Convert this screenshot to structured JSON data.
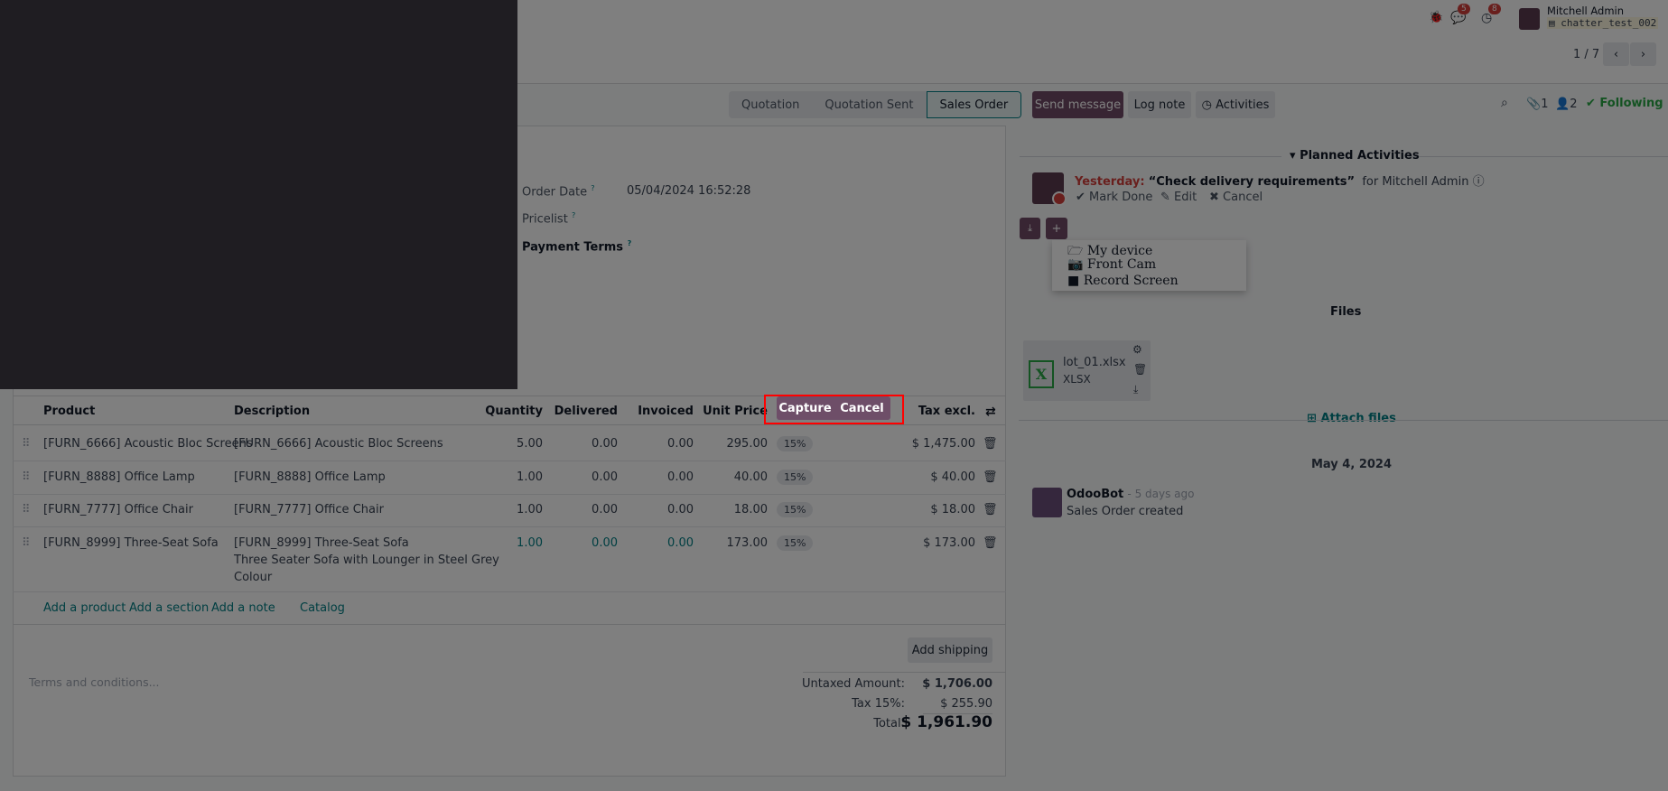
{
  "topbar": {
    "user_name": "Mitchell Admin",
    "database": "chatter_test_002",
    "messages_badge": "5",
    "activities_badge": "8"
  },
  "pager": {
    "value": "1 / 7"
  },
  "statusbar": {
    "stages": [
      "Quotation",
      "Quotation Sent",
      "Sales Order"
    ],
    "active": "Sales Order"
  },
  "form": {
    "order_date_label": "Order Date",
    "order_date_value": "05/04/2024 16:52:28",
    "pricelist_label": "Pricelist",
    "payment_terms_label": "Payment Terms",
    "help_mark": "?"
  },
  "table": {
    "headers": [
      "Product",
      "Description",
      "Quantity",
      "Delivered",
      "Invoiced",
      "Unit Price",
      "Tax excl."
    ],
    "rows": [
      {
        "product": "[FURN_6666] Acoustic Bloc Screens",
        "description": [
          "[FURN_6666] Acoustic Bloc Screens"
        ],
        "quantity": "5.00",
        "delivered": "0.00",
        "invoiced": "0.00",
        "unit_price": "295.00",
        "tax": "15%",
        "subtotal": "$ 1,475.00"
      },
      {
        "product": "[FURN_8888] Office Lamp",
        "description": [
          "[FURN_8888] Office Lamp"
        ],
        "quantity": "1.00",
        "delivered": "0.00",
        "invoiced": "0.00",
        "unit_price": "40.00",
        "tax": "15%",
        "subtotal": "$ 40.00"
      },
      {
        "product": "[FURN_7777] Office Chair",
        "description": [
          "[FURN_7777] Office Chair"
        ],
        "quantity": "1.00",
        "delivered": "0.00",
        "invoiced": "0.00",
        "unit_price": "18.00",
        "tax": "15%",
        "subtotal": "$ 18.00"
      },
      {
        "product": "[FURN_8999] Three-Seat Sofa",
        "description": [
          "[FURN_8999] Three-Seat Sofa",
          "Three Seater Sofa with Lounger in Steel Grey",
          "Colour"
        ],
        "quantity": "1.00",
        "delivered": "0.00",
        "invoiced": "0.00",
        "unit_price": "173.00",
        "tax": "15%",
        "subtotal": "$ 173.00"
      }
    ],
    "add_links": [
      "Add a product",
      "Add a section",
      "Add a note",
      "Catalog"
    ]
  },
  "footer": {
    "add_shipping": "Add shipping",
    "terms_placeholder": "Terms and conditions...",
    "untaxed_label": "Untaxed Amount:",
    "untaxed_value": "$ 1,706.00",
    "tax_label": "Tax 15%:",
    "tax_value": "$ 255.90",
    "total_label": "Total:",
    "total_value": "$ 1,961.90"
  },
  "capture": {
    "capture_label": "Capture",
    "cancel_label": "Cancel"
  },
  "chatter": {
    "send_message": "Send message",
    "log_note": "Log note",
    "activities": "Activities",
    "attachments_count": "1",
    "followers_count": "2",
    "following": "Following",
    "planned_activities": "Planned Activities",
    "activity": {
      "when": "Yesterday:",
      "title": "“Check delivery requirements”",
      "for": "for Mitchell Admin",
      "mark_done": "Mark Done",
      "edit": "Edit",
      "cancel": "Cancel"
    },
    "upload_menu": [
      "My device",
      "Front Cam",
      "Record Screen"
    ],
    "files_title": "Files",
    "file": {
      "name": "lot_01.xlsx",
      "type": "XLSX",
      "icon_letter": "X"
    },
    "attach_files": "Attach files",
    "date_separator": "May 4, 2024",
    "message": {
      "author": "OdooBot",
      "time": "- 5 days ago",
      "body": "Sales Order created"
    }
  },
  "colors": {
    "brand": "#714b67",
    "link": "#017e84",
    "following": "#28a745",
    "yesterday": "#d23f3a",
    "highlight_box": "#ff0000"
  }
}
